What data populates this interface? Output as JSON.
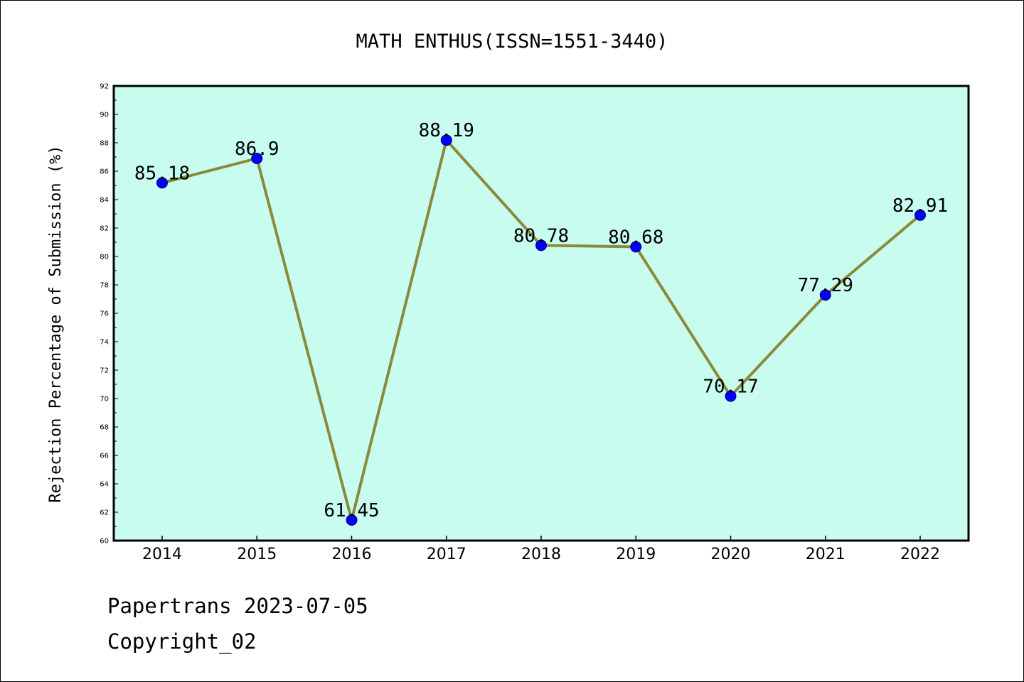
{
  "chart_data": {
    "type": "line",
    "title": "MATH ENTHUS(ISSN=1551-3440)",
    "xlabel": "",
    "ylabel": "Rejection Percentage of Submission (%)",
    "categories": [
      "2014",
      "2015",
      "2016",
      "2017",
      "2018",
      "2019",
      "2020",
      "2021",
      "2022"
    ],
    "series": [
      {
        "values": [
          85.18,
          86.9,
          61.45,
          88.19,
          80.78,
          80.68,
          70.17,
          77.29,
          82.91
        ],
        "labels": [
          "85.18",
          "86.9",
          "61.45",
          "88.19",
          "80.78",
          "80.68",
          "70.17",
          "77.29",
          "82.91"
        ]
      }
    ],
    "ylim": [
      60,
      92
    ],
    "yticks": [
      "60",
      "62",
      "64",
      "66",
      "68",
      "70",
      "72",
      "74",
      "76",
      "78",
      "80",
      "82",
      "84",
      "86",
      "88",
      "90",
      "92"
    ],
    "grid": false,
    "legend": "none",
    "colors": {
      "plot_background": "#c8fcee",
      "line": "#8b8a3a",
      "marker": "#0000ff",
      "axis": "#000000"
    }
  },
  "footer": {
    "line1": "Papertrans 2023-07-05",
    "line2": "Copyright_02"
  }
}
